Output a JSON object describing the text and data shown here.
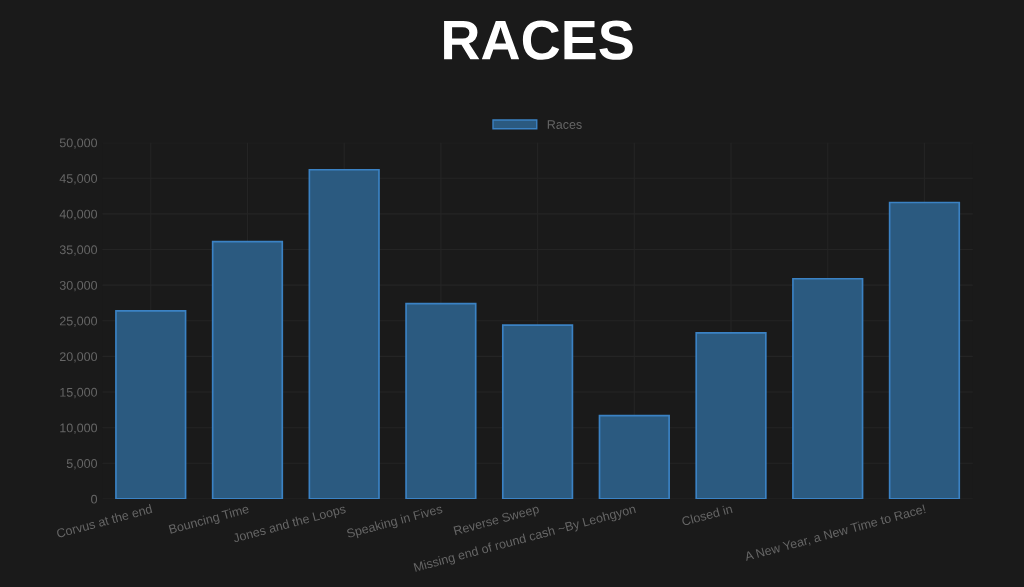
{
  "chart_data": {
    "type": "bar",
    "title": "RACES",
    "categories": [
      "Corvus at the end",
      "Bouncing Time",
      "Jones and the Loops",
      "Speaking in Fives",
      "Reverse Sweep",
      "Missing end of round cash ~By Leohgyon",
      "Closed in",
      null,
      "A New Year, a New Time to Race!"
    ],
    "series": [
      {
        "name": "Races",
        "color": "#2b5a80",
        "values": [
          26400,
          36100,
          46200,
          27400,
          24400,
          11700,
          23300,
          30900,
          41600
        ]
      }
    ],
    "ylim": [
      0,
      50000
    ],
    "yticks": [
      {
        "value": 0,
        "label": "0"
      },
      {
        "value": 5000,
        "label": "5,000"
      },
      {
        "value": 10000,
        "label": "10,000"
      },
      {
        "value": 15000,
        "label": "15,000"
      },
      {
        "value": 20000,
        "label": "20,000"
      },
      {
        "value": 25000,
        "label": "25,000"
      },
      {
        "value": 30000,
        "label": "30,000"
      },
      {
        "value": 35000,
        "label": "35,000"
      },
      {
        "value": 40000,
        "label": "40,000"
      },
      {
        "value": 45000,
        "label": "45,000"
      },
      {
        "value": 50000,
        "label": "50,000"
      }
    ],
    "grid": true,
    "legend": "top"
  }
}
